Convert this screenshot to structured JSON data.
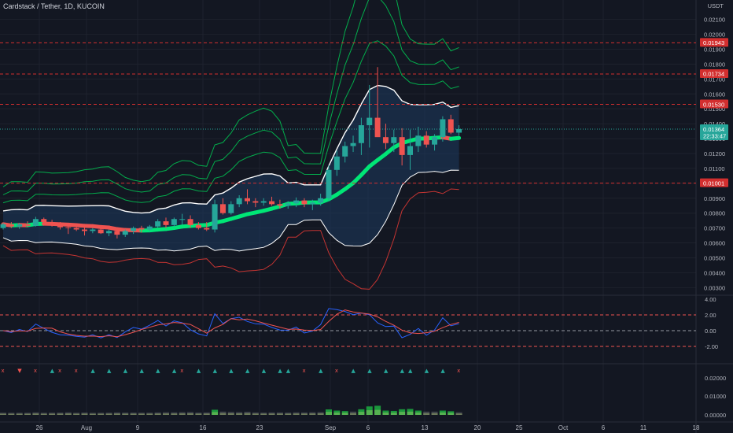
{
  "header": {
    "title": "Cardstack / Tether, 1D, KUCOIN"
  },
  "colors": {
    "background": "#131722",
    "up": "#26a69a",
    "down": "#ef5350",
    "signal_green": "#00e676",
    "grid": "#1e222d"
  },
  "price_axis": {
    "currency": "USDT",
    "ticks": [
      "0.02100",
      "0.02000",
      "0.01900",
      "0.01800",
      "0.01700",
      "0.01600",
      "0.01500",
      "0.01400",
      "0.01300",
      "0.01200",
      "0.01100",
      "0.01000",
      "0.00900",
      "0.00800",
      "0.00700",
      "0.00600",
      "0.00500",
      "0.00400",
      "0.00300"
    ],
    "levels": [
      {
        "value": "0.01943",
        "color": "#d32f2f"
      },
      {
        "value": "0.01734",
        "color": "#d32f2f"
      },
      {
        "value": "0.01530",
        "color": "#d32f2f"
      },
      {
        "value": "0.01001",
        "color": "#d32f2f"
      }
    ],
    "last_price": "0.01364",
    "countdown": "22:33:47"
  },
  "oscillator_axis": {
    "ticks": [
      "4.00",
      "2.00",
      "0.00",
      "-2.00"
    ]
  },
  "volume_axis": {
    "ticks": [
      "0.02000",
      "0.01000",
      "0.00000"
    ]
  },
  "time_axis": {
    "labels": [
      "26",
      "Aug",
      "9",
      "16",
      "23",
      "Sep",
      "6",
      "13",
      "20",
      "25",
      "Oct",
      "6",
      "11",
      "18"
    ]
  },
  "signal_markers": [
    "x",
    "▼",
    "x",
    "▲",
    "x",
    "x",
    "▲",
    "▲",
    "▲",
    "▲",
    "▲",
    "▲",
    "x",
    "▲",
    "▲",
    "▲",
    "▲",
    "▲",
    "▲",
    "▲",
    "x",
    "▲",
    "x",
    "▲",
    "▲",
    "▲",
    "▲",
    "▲",
    "▲",
    "▲",
    "x"
  ],
  "chart_data": {
    "type": "candlestick",
    "timeframe": "1D",
    "ylim": [
      0.0027,
      0.0213
    ],
    "candles": [
      [
        0.007,
        0.00735,
        0.0069,
        0.00725
      ],
      [
        0.00725,
        0.0074,
        0.007,
        0.0071
      ],
      [
        0.0071,
        0.00735,
        0.00695,
        0.00725
      ],
      [
        0.00725,
        0.00745,
        0.00705,
        0.00715
      ],
      [
        0.00715,
        0.00775,
        0.0071,
        0.0076
      ],
      [
        0.0076,
        0.0077,
        0.0073,
        0.0074
      ],
      [
        0.0074,
        0.00755,
        0.0071,
        0.0072
      ],
      [
        0.0072,
        0.0074,
        0.0069,
        0.00705
      ],
      [
        0.00705,
        0.00725,
        0.0066,
        0.007
      ],
      [
        0.007,
        0.0072,
        0.0068,
        0.0069
      ],
      [
        0.0069,
        0.00705,
        0.0065,
        0.0068
      ],
      [
        0.0068,
        0.007,
        0.00665,
        0.0069
      ],
      [
        0.0069,
        0.007,
        0.0066,
        0.00665
      ],
      [
        0.00665,
        0.0069,
        0.00645,
        0.0068
      ],
      [
        0.0068,
        0.0069,
        0.0063,
        0.00655
      ],
      [
        0.00655,
        0.0069,
        0.0064,
        0.0068
      ],
      [
        0.0068,
        0.0071,
        0.0066,
        0.007
      ],
      [
        0.007,
        0.00715,
        0.0067,
        0.0069
      ],
      [
        0.0069,
        0.0072,
        0.00675,
        0.0071
      ],
      [
        0.0071,
        0.0076,
        0.007,
        0.00745
      ],
      [
        0.00745,
        0.0077,
        0.007,
        0.0072
      ],
      [
        0.0072,
        0.0077,
        0.00705,
        0.0076
      ],
      [
        0.0076,
        0.00795,
        0.0072,
        0.0076
      ],
      [
        0.0076,
        0.00785,
        0.007,
        0.0072
      ],
      [
        0.0072,
        0.0074,
        0.0069,
        0.007
      ],
      [
        0.007,
        0.0074,
        0.0068,
        0.0069
      ],
      [
        0.0069,
        0.0089,
        0.0067,
        0.0086
      ],
      [
        0.0086,
        0.009,
        0.0079,
        0.008
      ],
      [
        0.008,
        0.0088,
        0.0079,
        0.0086
      ],
      [
        0.0086,
        0.0092,
        0.0084,
        0.009
      ],
      [
        0.009,
        0.0096,
        0.0086,
        0.0088
      ],
      [
        0.0088,
        0.009,
        0.0084,
        0.0087
      ],
      [
        0.0087,
        0.009,
        0.0085,
        0.0088
      ],
      [
        0.0088,
        0.0091,
        0.0085,
        0.0086
      ],
      [
        0.0086,
        0.0089,
        0.0083,
        0.0085
      ],
      [
        0.0085,
        0.0088,
        0.0083,
        0.00865
      ],
      [
        0.00865,
        0.00905,
        0.0084,
        0.00885
      ],
      [
        0.00885,
        0.009,
        0.0084,
        0.0086
      ],
      [
        0.0086,
        0.0089,
        0.0082,
        0.0087
      ],
      [
        0.0087,
        0.0093,
        0.0085,
        0.009
      ],
      [
        0.009,
        0.0112,
        0.0088,
        0.0109
      ],
      [
        0.0109,
        0.0122,
        0.0105,
        0.0118
      ],
      [
        0.0118,
        0.0128,
        0.0114,
        0.0125
      ],
      [
        0.0125,
        0.0132,
        0.0121,
        0.0127
      ],
      [
        0.0127,
        0.0144,
        0.0119,
        0.0139
      ],
      [
        0.0139,
        0.0166,
        0.0124,
        0.0144
      ],
      [
        0.0144,
        0.0178,
        0.0132,
        0.0131
      ],
      [
        0.0131,
        0.014,
        0.0123,
        0.0127
      ],
      [
        0.0127,
        0.0136,
        0.0121,
        0.0131
      ],
      [
        0.0131,
        0.0137,
        0.0112,
        0.0119
      ],
      [
        0.0119,
        0.0136,
        0.0109,
        0.0125
      ],
      [
        0.0125,
        0.0138,
        0.0121,
        0.0132
      ],
      [
        0.0132,
        0.0135,
        0.0124,
        0.0126
      ],
      [
        0.0126,
        0.0133,
        0.0122,
        0.0131
      ],
      [
        0.0131,
        0.0145,
        0.0128,
        0.0143
      ],
      [
        0.0143,
        0.0146,
        0.0133,
        0.0134
      ],
      [
        0.0134,
        0.0139,
        0.0132,
        0.01364
      ]
    ]
  }
}
